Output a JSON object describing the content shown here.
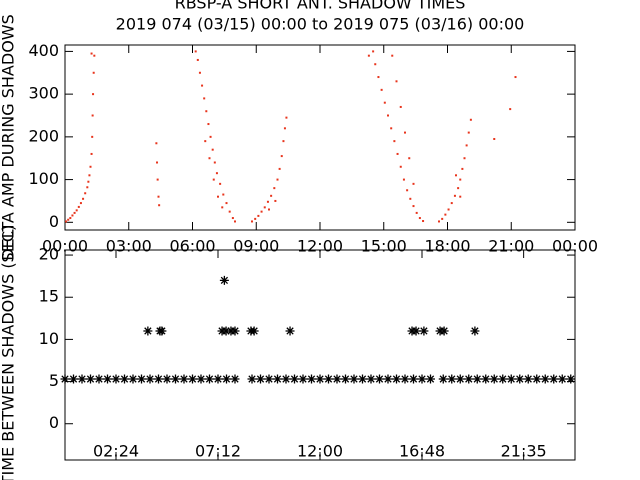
{
  "chart_data": [
    {
      "type": "scatter",
      "marker": "dot",
      "color": "#e8341c",
      "title": "RBSP-A SHORT ANT. SHADOW TIMES",
      "subtitle": "2019 074 (03/15) 00:00 to 2019 075 (03/16) 00:00",
      "y_label": "DELTA AMP DURING SHADOWS",
      "xlim": [
        0,
        24
      ],
      "ylim": [
        -18,
        415
      ],
      "xticks": [
        {
          "value": 0,
          "label": "00:00"
        },
        {
          "value": 3,
          "label": "03:00"
        },
        {
          "value": 6,
          "label": "06:00"
        },
        {
          "value": 9,
          "label": "09:00"
        },
        {
          "value": 12,
          "label": "12:00"
        },
        {
          "value": 15,
          "label": "15:00"
        },
        {
          "value": 18,
          "label": "18:00"
        },
        {
          "value": 21,
          "label": "21:00"
        },
        {
          "value": 24,
          "label": "00:00"
        }
      ],
      "yticks": [
        0,
        100,
        200,
        300,
        400
      ],
      "x": [
        0.05,
        0.15,
        0.25,
        0.35,
        0.45,
        0.55,
        0.65,
        0.75,
        0.85,
        0.95,
        1.05,
        1.1,
        1.15,
        1.2,
        1.25,
        1.28,
        1.3,
        1.32,
        1.35,
        1.38,
        1.25,
        4.3,
        4.33,
        4.36,
        4.4,
        4.43,
        6.15,
        6.25,
        6.35,
        6.45,
        6.55,
        6.65,
        6.75,
        6.85,
        6.95,
        7.05,
        7.15,
        7.3,
        7.45,
        7.6,
        7.75,
        7.9,
        8.0,
        6.6,
        6.8,
        7.0,
        7.2,
        7.4,
        8.8,
        8.95,
        9.1,
        9.25,
        9.4,
        9.55,
        9.7,
        9.85,
        10.0,
        10.1,
        10.2,
        10.28,
        10.35,
        10.42,
        9.6,
        9.9,
        14.5,
        14.6,
        14.75,
        14.9,
        15.05,
        15.2,
        15.35,
        15.5,
        15.65,
        15.8,
        15.95,
        16.1,
        16.25,
        16.4,
        16.55,
        16.7,
        16.85,
        15.4,
        15.6,
        15.8,
        16.0,
        16.2,
        16.4,
        14.3,
        17.6,
        17.75,
        17.9,
        18.05,
        18.2,
        18.35,
        18.5,
        18.6,
        18.7,
        18.8,
        18.9,
        19.0,
        19.1,
        18.4,
        18.6,
        20.2,
        20.95,
        21.2
      ],
      "values": [
        2,
        6,
        10,
        16,
        22,
        28,
        36,
        45,
        55,
        68,
        82,
        95,
        110,
        130,
        160,
        200,
        250,
        300,
        350,
        390,
        395,
        185,
        140,
        100,
        60,
        40,
        400,
        380,
        350,
        320,
        290,
        260,
        230,
        200,
        170,
        140,
        115,
        90,
        65,
        45,
        25,
        10,
        2,
        190,
        150,
        100,
        60,
        35,
        2,
        8,
        15,
        25,
        35,
        48,
        62,
        80,
        100,
        125,
        155,
        190,
        220,
        245,
        30,
        50,
        400,
        370,
        340,
        310,
        280,
        250,
        220,
        190,
        160,
        130,
        100,
        75,
        55,
        38,
        22,
        10,
        3,
        390,
        330,
        270,
        210,
        150,
        90,
        390,
        2,
        8,
        18,
        30,
        45,
        62,
        80,
        100,
        125,
        150,
        180,
        210,
        240,
        110,
        60,
        195,
        265,
        340
      ]
    },
    {
      "type": "scatter",
      "marker": "asterisk",
      "color": "#000000",
      "y_label": "TIME BETWEEN SHADOWS (SEC)",
      "xlim": [
        0,
        24
      ],
      "ylim": [
        -4.3,
        20.6
      ],
      "xticks": [
        {
          "value": 2.4,
          "label": "02:24"
        },
        {
          "value": 7.2,
          "label": "07:12"
        },
        {
          "value": 12,
          "label": "12:00"
        },
        {
          "value": 16.8,
          "label": "16:48"
        },
        {
          "value": 21.583,
          "label": "21:35"
        }
      ],
      "yticks": [
        0,
        5,
        10,
        15,
        20
      ],
      "x": [
        0,
        0.4,
        0.8,
        1.2,
        1.6,
        2.0,
        2.4,
        2.8,
        3.2,
        3.6,
        4.0,
        4.4,
        4.8,
        5.2,
        5.6,
        6.0,
        6.4,
        6.8,
        7.2,
        7.6,
        8.0,
        8.8,
        9.2,
        9.6,
        10.0,
        10.4,
        10.8,
        11.2,
        11.6,
        12.0,
        12.4,
        12.8,
        13.2,
        13.6,
        14.0,
        14.4,
        14.8,
        15.2,
        15.6,
        16.0,
        16.4,
        16.8,
        17.2,
        17.8,
        18.2,
        18.6,
        19.0,
        19.4,
        19.8,
        20.2,
        20.6,
        21.0,
        21.4,
        21.8,
        22.2,
        22.6,
        23.0,
        23.4,
        23.8,
        3.9,
        4.47,
        4.56,
        7.39,
        7.58,
        7.81,
        8.0,
        8.75,
        8.9,
        10.59,
        16.33,
        16.52,
        16.89,
        17.65,
        17.84,
        19.29,
        7.5
      ],
      "values": [
        5.3,
        5.3,
        5.3,
        5.3,
        5.3,
        5.3,
        5.3,
        5.3,
        5.3,
        5.3,
        5.3,
        5.3,
        5.3,
        5.3,
        5.3,
        5.3,
        5.3,
        5.3,
        5.3,
        5.3,
        5.3,
        5.3,
        5.3,
        5.3,
        5.3,
        5.3,
        5.3,
        5.3,
        5.3,
        5.3,
        5.3,
        5.3,
        5.3,
        5.3,
        5.3,
        5.3,
        5.3,
        5.3,
        5.3,
        5.3,
        5.3,
        5.3,
        5.3,
        5.3,
        5.3,
        5.3,
        5.3,
        5.3,
        5.3,
        5.3,
        5.3,
        5.3,
        5.3,
        5.3,
        5.3,
        5.3,
        5.3,
        5.3,
        5.3,
        11,
        11,
        11,
        11,
        11,
        11,
        11,
        11,
        11,
        11,
        11,
        11,
        11,
        11,
        11,
        11,
        17
      ]
    }
  ]
}
